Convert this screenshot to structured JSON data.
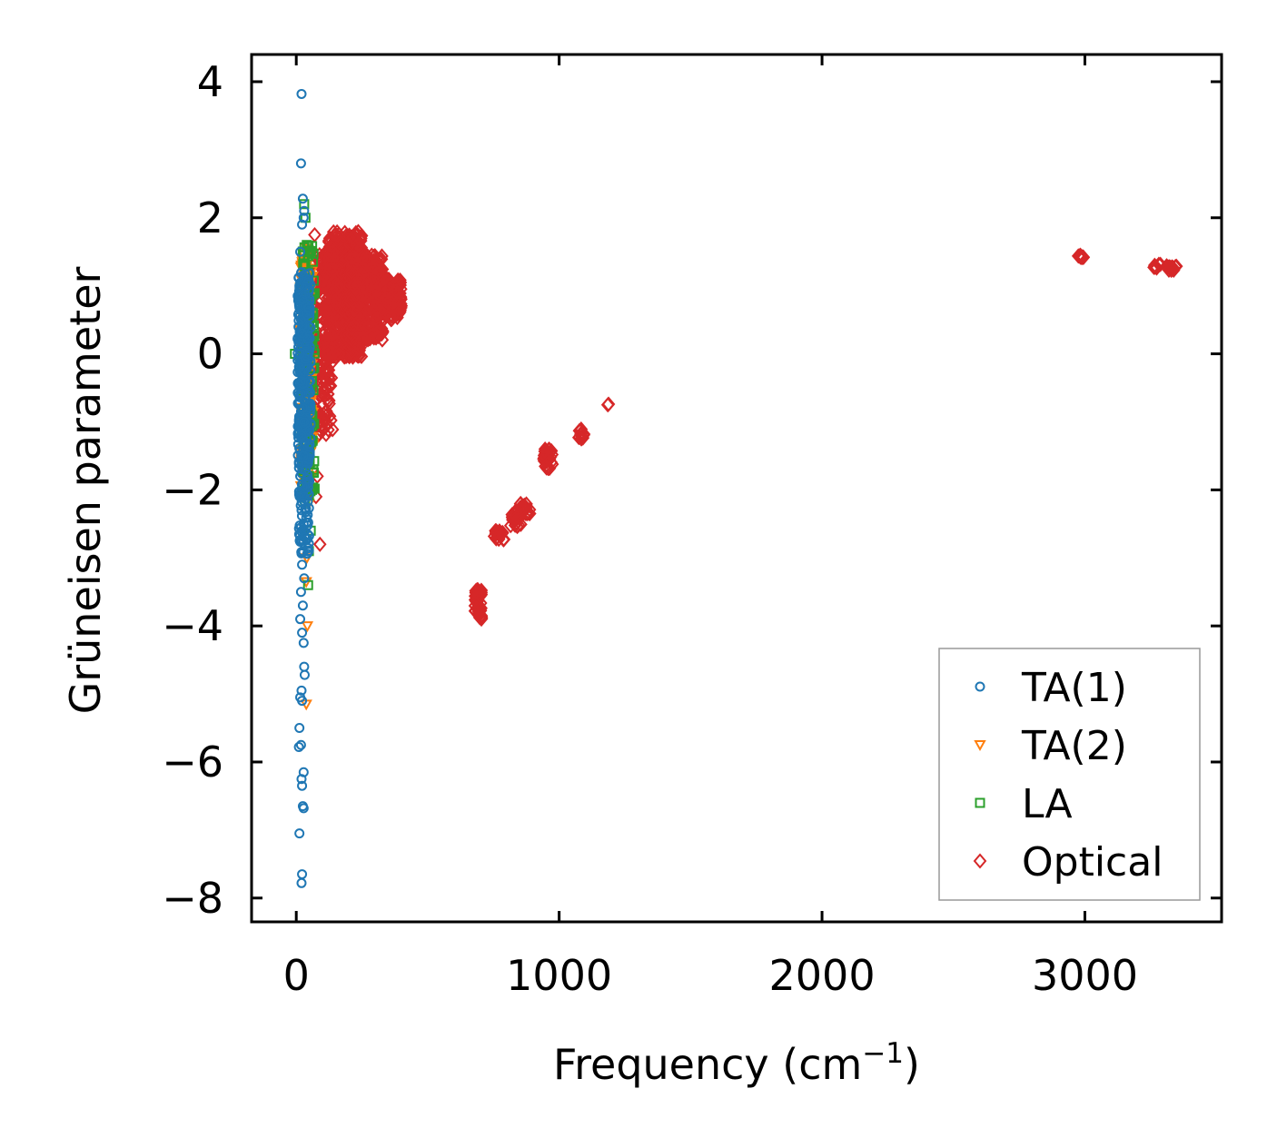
{
  "chart_data": {
    "type": "scatter",
    "title": "",
    "xlabel": "Frequency (cm",
    "xlabel_sup": "−1",
    "xlabel_suffix": ")",
    "ylabel": "Grüneisen parameter",
    "xlim": [
      -170,
      3520
    ],
    "ylim": [
      -8.35,
      4.4
    ],
    "xticks": [
      0,
      1000,
      2000,
      3000
    ],
    "xtick_labels": [
      "0",
      "1000",
      "2000",
      "3000"
    ],
    "yticks": [
      -8,
      -6,
      -4,
      -2,
      0,
      2,
      4
    ],
    "ytick_labels": [
      "−8",
      "−6",
      "−4",
      "−2",
      "0",
      "2",
      "4"
    ],
    "grid": false,
    "legend_position": "bottom-right",
    "series": [
      {
        "name": "TA(1)",
        "marker": "circle",
        "color": "#1f77b4",
        "points": [
          [
            20,
            3.82
          ],
          [
            18,
            2.8
          ],
          [
            25,
            2.28
          ],
          [
            30,
            2.1
          ],
          [
            28,
            2.0
          ],
          [
            22,
            1.9
          ],
          [
            15,
            1.5
          ],
          [
            20,
            1.2
          ],
          [
            12,
            1.0
          ],
          [
            25,
            0.8
          ],
          [
            10,
            0.6
          ],
          [
            18,
            0.5
          ],
          [
            22,
            0.3
          ],
          [
            8,
            0.1
          ],
          [
            15,
            0.0
          ],
          [
            12,
            -0.2
          ],
          [
            18,
            -0.4
          ],
          [
            10,
            -0.6
          ],
          [
            25,
            -0.8
          ],
          [
            30,
            -1.0
          ],
          [
            20,
            -1.2
          ],
          [
            28,
            -1.5
          ],
          [
            35,
            -1.7
          ],
          [
            15,
            -1.8
          ],
          [
            25,
            -1.95
          ],
          [
            30,
            -2.1
          ],
          [
            20,
            -2.3
          ],
          [
            28,
            -2.5
          ],
          [
            18,
            -2.55
          ],
          [
            32,
            -2.7
          ],
          [
            25,
            -2.9
          ],
          [
            22,
            -3.1
          ],
          [
            30,
            -3.3
          ],
          [
            18,
            -3.5
          ],
          [
            25,
            -3.7
          ],
          [
            15,
            -3.9
          ],
          [
            22,
            -4.1
          ],
          [
            28,
            -4.25
          ],
          [
            30,
            -4.6
          ],
          [
            32,
            -4.72
          ],
          [
            20,
            -4.95
          ],
          [
            15,
            -5.05
          ],
          [
            22,
            -5.1
          ],
          [
            12,
            -5.5
          ],
          [
            10,
            -5.78
          ],
          [
            18,
            -5.75
          ],
          [
            28,
            -6.15
          ],
          [
            20,
            -6.25
          ],
          [
            22,
            -6.35
          ],
          [
            25,
            -6.65
          ],
          [
            28,
            -6.68
          ],
          [
            12,
            -7.05
          ],
          [
            22,
            -7.65
          ],
          [
            20,
            -7.78
          ]
        ],
        "clusters": [
          {
            "x": [
              5,
              55
            ],
            "y": [
              -1.6,
              1.2
            ],
            "count": 260
          },
          {
            "x": [
              10,
              50
            ],
            "y": [
              -3.0,
              -1.0
            ],
            "count": 80
          }
        ]
      },
      {
        "name": "TA(2)",
        "marker": "triangle-down",
        "color": "#ff7f0e",
        "points": [
          [
            40,
            1.55
          ],
          [
            35,
            1.3
          ],
          [
            45,
            1.1
          ],
          [
            30,
            0.9
          ],
          [
            50,
            0.5
          ],
          [
            40,
            0.2
          ],
          [
            35,
            -0.3
          ],
          [
            45,
            -0.6
          ],
          [
            50,
            -1.0
          ],
          [
            42,
            -1.4
          ],
          [
            55,
            -1.8
          ],
          [
            48,
            -2.2
          ],
          [
            40,
            -3.0
          ],
          [
            38,
            -3.35
          ],
          [
            42,
            -4.0
          ],
          [
            38,
            -5.15
          ]
        ],
        "clusters": [
          {
            "x": [
              15,
              65
            ],
            "y": [
              -2.0,
              1.5
            ],
            "count": 140
          }
        ]
      },
      {
        "name": "LA",
        "marker": "square",
        "color": "#2ca02c",
        "points": [
          [
            30,
            2.2
          ],
          [
            35,
            2.0
          ],
          [
            40,
            1.6
          ],
          [
            28,
            1.45
          ],
          [
            45,
            1.2
          ],
          [
            55,
            0.8
          ],
          [
            50,
            0.4
          ],
          [
            -5,
            0.0
          ],
          [
            60,
            -0.4
          ],
          [
            55,
            -0.8
          ],
          [
            50,
            -1.4
          ],
          [
            60,
            -2.0
          ],
          [
            55,
            -2.6
          ],
          [
            48,
            -2.9
          ],
          [
            45,
            -3.4
          ]
        ],
        "clusters": [
          {
            "x": [
              20,
              70
            ],
            "y": [
              -2.2,
              1.6
            ],
            "count": 120
          }
        ]
      },
      {
        "name": "Optical",
        "marker": "diamond",
        "color": "#d62728",
        "points": [
          [
            70,
            1.75
          ],
          [
            80,
            -1.8
          ],
          [
            75,
            -2.1
          ],
          [
            90,
            -2.8
          ],
          [
            65,
            1.0
          ],
          [
            1185,
            -0.75
          ],
          [
            1188,
            -0.74
          ]
        ],
        "clusters": [
          {
            "x": [
              60,
              140
            ],
            "y": [
              -1.2,
              1.5
            ],
            "count": 220
          },
          {
            "x": [
              120,
              250
            ],
            "y": [
              -0.05,
              1.8
            ],
            "count": 600
          },
          {
            "x": [
              200,
              330
            ],
            "y": [
              0.2,
              1.45
            ],
            "count": 350
          },
          {
            "x": [
              300,
              400
            ],
            "y": [
              0.5,
              1.1
            ],
            "count": 150
          },
          {
            "x": [
              680,
              705
            ],
            "y": [
              -3.9,
              -3.45
            ],
            "count": 50
          },
          {
            "x": [
              750,
              790
            ],
            "y": [
              -2.75,
              -2.6
            ],
            "count": 20
          },
          {
            "x": [
              815,
              855
            ],
            "y": [
              -2.55,
              -2.3
            ],
            "count": 25
          },
          {
            "x": [
              850,
              890
            ],
            "y": [
              -2.35,
              -2.15
            ],
            "count": 20
          },
          {
            "x": [
              940,
              975
            ],
            "y": [
              -1.7,
              -1.4
            ],
            "count": 35
          },
          {
            "x": [
              1070,
              1095
            ],
            "y": [
              -1.25,
              -1.1
            ],
            "count": 15
          },
          {
            "x": [
              2965,
              2995
            ],
            "y": [
              1.4,
              1.45
            ],
            "count": 10
          },
          {
            "x": [
              3255,
              3290
            ],
            "y": [
              1.26,
              1.32
            ],
            "count": 8
          },
          {
            "x": [
              3310,
              3350
            ],
            "y": [
              1.22,
              1.3
            ],
            "count": 12
          }
        ]
      }
    ]
  }
}
